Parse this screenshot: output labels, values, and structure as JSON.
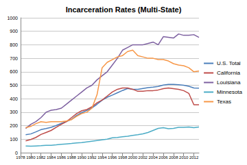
{
  "chart_data": {
    "type": "line",
    "title": "Incarceration Rates (Multi-State)",
    "x": [
      1979,
      1980,
      1981,
      1982,
      1983,
      1984,
      1985,
      1986,
      1987,
      1988,
      1989,
      1990,
      1991,
      1992,
      1993,
      1994,
      1995,
      1996,
      1997,
      1998,
      1999,
      2000,
      2001,
      2002,
      2003,
      2004,
      2005,
      2006,
      2007,
      2008,
      2009,
      2010,
      2011,
      2012,
      2013
    ],
    "series": [
      {
        "name": "U.S. Total",
        "color": "#4a7ebb",
        "values": [
          133,
          139,
          154,
          171,
          179,
          188,
          202,
          217,
          231,
          247,
          276,
          297,
          313,
          332,
          359,
          389,
          411,
          427,
          444,
          461,
          476,
          469,
          470,
          476,
          482,
          486,
          491,
          501,
          506,
          506,
          504,
          500,
          492,
          480,
          478
        ]
      },
      {
        "name": "California",
        "color": "#be4b48",
        "values": [
          88,
          98,
          113,
          135,
          150,
          165,
          188,
          210,
          230,
          260,
          290,
          311,
          320,
          340,
          370,
          390,
          420,
          450,
          470,
          480,
          480,
          470,
          455,
          455,
          460,
          460,
          465,
          475,
          480,
          475,
          470,
          460,
          440,
          355,
          355
        ]
      },
      {
        "name": "Louisiana",
        "color": "#7d60a0",
        "values": [
          180,
          210,
          230,
          260,
          300,
          315,
          320,
          330,
          360,
          390,
          420,
          450,
          480,
          500,
          540,
          570,
          600,
          650,
          700,
          760,
          780,
          800,
          800,
          800,
          810,
          820,
          800,
          860,
          855,
          850,
          880,
          870,
          870,
          875,
          855
        ]
      },
      {
        "name": "Minnesota",
        "color": "#4bacc6",
        "values": [
          50,
          48,
          50,
          52,
          55,
          55,
          58,
          62,
          65,
          68,
          72,
          75,
          80,
          85,
          90,
          95,
          100,
          110,
          113,
          118,
          122,
          128,
          133,
          140,
          150,
          165,
          180,
          185,
          178,
          180,
          188,
          188,
          190,
          185,
          190
        ]
      },
      {
        "name": "Texas",
        "color": "#f79646",
        "values": [
          185,
          195,
          215,
          230,
          225,
          230,
          230,
          230,
          235,
          245,
          270,
          290,
          300,
          330,
          430,
          630,
          670,
          690,
          710,
          720,
          750,
          760,
          720,
          710,
          700,
          700,
          690,
          690,
          680,
          660,
          650,
          645,
          630,
          600,
          605
        ]
      }
    ],
    "xlim": [
      1978,
      2013
    ],
    "xticks": [
      1978,
      1980,
      1982,
      1984,
      1986,
      1988,
      1990,
      1992,
      1994,
      1996,
      1998,
      2000,
      2002,
      2004,
      2006,
      2008,
      2010,
      2012
    ],
    "ylim": [
      0,
      1000
    ],
    "yticks": [
      0,
      100,
      200,
      300,
      400,
      500,
      600,
      700,
      800,
      900,
      1000
    ],
    "grid": true,
    "legend": "right",
    "marker": "none"
  }
}
